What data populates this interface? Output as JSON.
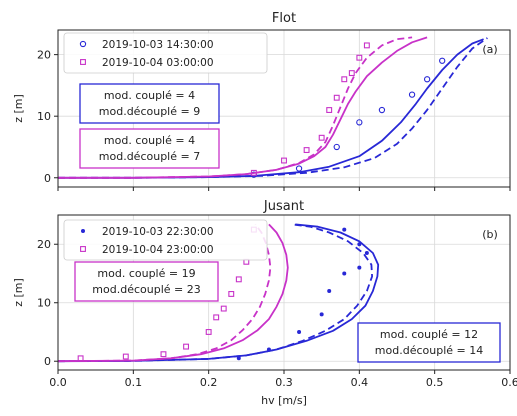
{
  "chart_data": [
    {
      "type": "line",
      "panel": "(a)",
      "title": "Flot",
      "xlabel": "",
      "ylabel": "z [m]",
      "xlim": [
        0,
        0.6
      ],
      "ylim": [
        -1.5,
        24
      ],
      "xticks": [
        0.0,
        0.1,
        0.2,
        0.3,
        0.4,
        0.5,
        0.6
      ],
      "yticks": [
        0,
        10,
        20
      ],
      "ytick_labels": [
        "0",
        "10",
        "20"
      ],
      "grid": true,
      "legend": {
        "placement": "top-left",
        "entries": [
          {
            "label": "2019-10-03 14:30:00",
            "color": "#2828d6",
            "marker": "circle"
          },
          {
            "label": "2019-10-04 03:00:00",
            "color": "#c832c8",
            "marker": "square"
          }
        ]
      },
      "annotations": [
        {
          "lines": [
            "mod. couplé = 4",
            "mod.découplé = 9"
          ],
          "color": "#2828d6",
          "placement": "left"
        },
        {
          "lines": [
            "mod. couplé = 4",
            "mod.découplé = 7"
          ],
          "color": "#c832c8",
          "placement": "left"
        }
      ],
      "series": [
        {
          "name": "2019-10-03 14:30:00",
          "kind": "observations",
          "color": "#2828d6",
          "marker": "circle",
          "x": [
            0.26,
            0.32,
            0.37,
            0.4,
            0.43,
            0.47,
            0.49,
            0.51
          ],
          "y": [
            0.5,
            1.5,
            5.0,
            9.0,
            11.0,
            13.5,
            16.0,
            19.0
          ]
        },
        {
          "name": "",
          "kind": "mod. couplé",
          "color": "#2828d6",
          "style": "solid",
          "x": [
            0.0,
            0.1,
            0.2,
            0.26,
            0.32,
            0.36,
            0.4,
            0.43,
            0.455,
            0.475,
            0.49,
            0.51,
            0.53,
            0.55,
            0.565
          ],
          "y": [
            0.0,
            0.0,
            0.1,
            0.3,
            0.9,
            1.8,
            3.5,
            6.0,
            9.0,
            12.0,
            14.5,
            17.5,
            20.0,
            21.8,
            22.5
          ]
        },
        {
          "name": "",
          "kind": "mod. découplé",
          "color": "#2828d6",
          "style": "dashed",
          "x": [
            0.0,
            0.1,
            0.2,
            0.27,
            0.33,
            0.38,
            0.42,
            0.45,
            0.47,
            0.49,
            0.51,
            0.53,
            0.55,
            0.57
          ],
          "y": [
            0.0,
            0.0,
            0.1,
            0.3,
            0.8,
            1.7,
            3.2,
            5.5,
            8.0,
            11.0,
            14.5,
            18.0,
            21.0,
            22.7
          ]
        },
        {
          "name": "2019-10-04 03:00:00",
          "kind": "observations",
          "color": "#c832c8",
          "marker": "square",
          "x": [
            0.26,
            0.3,
            0.33,
            0.35,
            0.36,
            0.37,
            0.38,
            0.39,
            0.4,
            0.41
          ],
          "y": [
            0.8,
            2.8,
            4.5,
            6.5,
            11.0,
            13.0,
            16.0,
            17.0,
            19.5,
            21.5
          ]
        },
        {
          "name": "",
          "kind": "mod. couplé",
          "color": "#c832c8",
          "style": "solid",
          "x": [
            0.0,
            0.1,
            0.2,
            0.25,
            0.29,
            0.32,
            0.34,
            0.355,
            0.365,
            0.375,
            0.385,
            0.395,
            0.41,
            0.43,
            0.45,
            0.47,
            0.49
          ],
          "y": [
            0.0,
            0.0,
            0.2,
            0.6,
            1.3,
            2.3,
            3.5,
            5.0,
            7.0,
            9.5,
            12.0,
            14.0,
            16.5,
            18.7,
            20.6,
            22.0,
            22.8
          ]
        },
        {
          "name": "",
          "kind": "mod. découplé",
          "color": "#c832c8",
          "style": "dashed",
          "x": [
            0.0,
            0.1,
            0.2,
            0.25,
            0.29,
            0.32,
            0.34,
            0.355,
            0.365,
            0.375,
            0.385,
            0.395,
            0.41,
            0.43,
            0.45,
            0.47
          ],
          "y": [
            0.0,
            0.0,
            0.2,
            0.6,
            1.3,
            2.4,
            3.8,
            5.8,
            8.5,
            11.5,
            14.5,
            17.0,
            19.5,
            21.5,
            22.5,
            22.8
          ]
        }
      ]
    },
    {
      "type": "line",
      "panel": "(b)",
      "title": "Jusant",
      "xlabel": "hv [m/s]",
      "ylabel": "z [m]",
      "xlim": [
        0,
        0.6
      ],
      "ylim": [
        -1.5,
        25
      ],
      "xticks": [
        0.0,
        0.1,
        0.2,
        0.3,
        0.4,
        0.5,
        0.6
      ],
      "xtick_labels": [
        "0.0",
        "0.1",
        "0.2",
        "0.3",
        "0.4",
        "0.5",
        "0.6"
      ],
      "yticks": [
        0,
        10,
        20
      ],
      "ytick_labels": [
        "0",
        "10",
        "20"
      ],
      "grid": true,
      "legend": {
        "placement": "top-left",
        "entries": [
          {
            "label": "2019-10-03 22:30:00",
            "color": "#2828d6",
            "marker": "dot"
          },
          {
            "label": "2019-10-04 23:00:00",
            "color": "#c832c8",
            "marker": "square"
          }
        ]
      },
      "annotations": [
        {
          "lines": [
            "mod. couplé = 19",
            "mod.découplé = 23"
          ],
          "color": "#c832c8",
          "placement": "left"
        },
        {
          "lines": [
            "mod. couplé = 12",
            "mod.découplé = 14"
          ],
          "color": "#2828d6",
          "placement": "bottom-right"
        }
      ],
      "series": [
        {
          "name": "2019-10-03 22:30:00",
          "kind": "observations",
          "color": "#2828d6",
          "marker": "dot",
          "x": [
            0.24,
            0.28,
            0.32,
            0.35,
            0.36,
            0.38,
            0.4,
            0.41,
            0.4,
            0.38
          ],
          "y": [
            0.5,
            2.0,
            5.0,
            8.0,
            12.0,
            15.0,
            16.0,
            18.5,
            20.0,
            22.5
          ]
        },
        {
          "name": "",
          "kind": "mod. couplé",
          "color": "#2828d6",
          "style": "solid",
          "x": [
            0.0,
            0.1,
            0.2,
            0.25,
            0.29,
            0.33,
            0.365,
            0.39,
            0.408,
            0.418,
            0.424,
            0.425,
            0.418,
            0.4,
            0.375,
            0.345,
            0.315
          ],
          "y": [
            0.0,
            0.05,
            0.4,
            1.0,
            2.0,
            3.5,
            5.2,
            7.2,
            9.5,
            12.0,
            14.5,
            16.5,
            18.5,
            20.5,
            22.0,
            23.0,
            23.4
          ]
        },
        {
          "name": "",
          "kind": "mod. découplé",
          "color": "#2828d6",
          "style": "dashed",
          "x": [
            0.0,
            0.1,
            0.2,
            0.25,
            0.29,
            0.325,
            0.355,
            0.38,
            0.397,
            0.41,
            0.417,
            0.416,
            0.405,
            0.385,
            0.36,
            0.335,
            0.31
          ],
          "y": [
            0.0,
            0.05,
            0.4,
            1.0,
            2.0,
            3.5,
            5.2,
            7.2,
            9.5,
            12.0,
            14.5,
            16.5,
            18.5,
            20.5,
            22.0,
            23.0,
            23.4
          ]
        },
        {
          "name": "2019-10-04 23:00:00",
          "kind": "observations",
          "color": "#c832c8",
          "marker": "square",
          "x": [
            0.03,
            0.09,
            0.14,
            0.17,
            0.2,
            0.21,
            0.22,
            0.23,
            0.24,
            0.25,
            0.26
          ],
          "y": [
            0.5,
            0.8,
            1.2,
            2.5,
            5.0,
            7.5,
            9.0,
            11.5,
            14.0,
            17.0,
            22.5
          ]
        },
        {
          "name": "",
          "kind": "mod. couplé",
          "color": "#c832c8",
          "style": "solid",
          "x": [
            0.0,
            0.1,
            0.15,
            0.19,
            0.22,
            0.245,
            0.265,
            0.28,
            0.29,
            0.298,
            0.303,
            0.305,
            0.303,
            0.298,
            0.29,
            0.28
          ],
          "y": [
            0.0,
            0.1,
            0.5,
            1.2,
            2.2,
            3.6,
            5.3,
            7.2,
            9.3,
            11.5,
            13.8,
            16.0,
            18.2,
            20.2,
            22.0,
            23.4
          ]
        },
        {
          "name": "",
          "kind": "mod. découplé",
          "color": "#c832c8",
          "style": "dashed",
          "x": [
            0.0,
            0.1,
            0.15,
            0.185,
            0.21,
            0.23,
            0.245,
            0.258,
            0.268,
            0.275,
            0.28,
            0.282,
            0.28,
            0.276,
            0.27,
            0.262
          ],
          "y": [
            0.0,
            0.1,
            0.5,
            1.2,
            2.2,
            3.6,
            5.3,
            7.2,
            9.3,
            11.5,
            13.8,
            16.0,
            18.2,
            20.2,
            22.0,
            23.4
          ]
        }
      ]
    }
  ]
}
